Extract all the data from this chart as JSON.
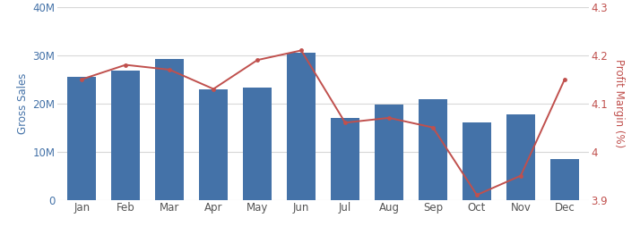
{
  "months": [
    "Jan",
    "Feb",
    "Mar",
    "Apr",
    "May",
    "Jun",
    "Jul",
    "Aug",
    "Sep",
    "Oct",
    "Nov",
    "Dec"
  ],
  "gross_sales": [
    25500000,
    26800000,
    29200000,
    23000000,
    23200000,
    30500000,
    17000000,
    19700000,
    20900000,
    16000000,
    17800000,
    8500000
  ],
  "profit_margin": [
    4.15,
    4.18,
    4.17,
    4.13,
    4.19,
    4.21,
    4.06,
    4.07,
    4.05,
    3.91,
    3.95,
    4.15
  ],
  "bar_color": "#4472a8",
  "line_color": "#c0504d",
  "left_ylabel": "Gross Sales",
  "right_ylabel": "Profit Margin (%)",
  "left_ylim": [
    0,
    40000000
  ],
  "left_yticks": [
    0,
    10000000,
    20000000,
    30000000,
    40000000
  ],
  "left_yticklabels": [
    "0",
    "10M",
    "20M",
    "30M",
    "40M"
  ],
  "right_ylim": [
    3.9,
    4.3
  ],
  "right_yticks": [
    3.9,
    4.0,
    4.1,
    4.2,
    4.3
  ],
  "right_yticklabels": [
    "3.9",
    "4",
    "4.1",
    "4.2",
    "4.3"
  ],
  "left_label_color": "#4472a8",
  "right_label_color": "#c0504d",
  "background_color": "#ffffff",
  "grid_color": "#d8d8d8",
  "figsize": [
    7.14,
    2.63
  ],
  "dpi": 100
}
